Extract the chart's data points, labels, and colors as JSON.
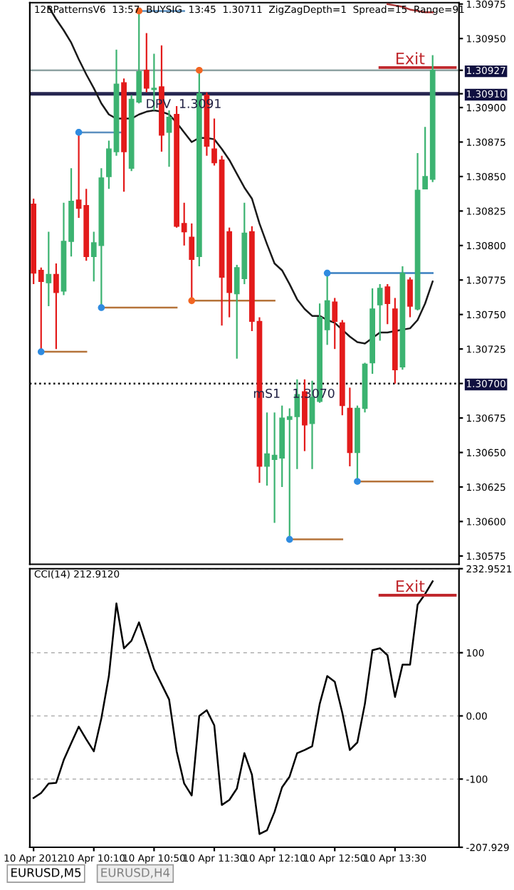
{
  "chart_data": [
    {
      "type": "candlestick",
      "title": "12BPatternsV6  13:57  BUYSIG  13:45  1.30711  ZigZagDepth=1  Spread=15  Range=91",
      "categories": [
        null,
        null,
        null,
        null,
        null,
        null,
        null,
        null,
        null,
        null,
        null,
        null,
        null,
        null,
        null,
        null,
        null,
        null,
        null,
        null,
        null,
        null,
        null,
        null,
        null,
        null,
        null,
        null,
        null,
        null,
        null,
        null,
        null,
        null,
        null,
        null,
        null,
        null,
        null,
        null,
        null,
        null,
        null,
        null,
        null,
        null,
        null,
        null,
        null,
        null,
        null,
        null,
        null,
        null,
        null,
        null,
        null
      ],
      "ohlc": [
        [
          1.3083,
          1.30834,
          1.30772,
          1.3078
        ],
        [
          1.30782,
          1.30784,
          1.30723,
          1.30774
        ],
        [
          1.30773,
          1.3081,
          1.30756,
          1.30779
        ],
        [
          1.30779,
          1.30787,
          1.30725,
          1.30766
        ],
        [
          1.30767,
          1.30831,
          1.30764,
          1.30803
        ],
        [
          1.30803,
          1.30856,
          1.30792,
          1.30832
        ],
        [
          1.30833,
          1.30882,
          1.3082,
          1.30827
        ],
        [
          1.30829,
          1.30841,
          1.30789,
          1.30792
        ],
        [
          1.30792,
          1.3081,
          1.30774,
          1.30802
        ],
        [
          1.308,
          1.30856,
          1.30755,
          1.30849
        ],
        [
          1.3085,
          1.30876,
          1.30841,
          1.3087
        ],
        [
          1.30868,
          1.30942,
          1.30865,
          1.30917
        ],
        [
          1.30918,
          1.30921,
          1.30839,
          1.30868
        ],
        [
          1.30856,
          1.30909,
          1.30854,
          1.30906
        ],
        [
          1.30904,
          1.3097,
          1.30903,
          1.30926
        ],
        [
          1.30927,
          1.30954,
          1.30911,
          1.30914
        ],
        [
          1.30913,
          1.30939,
          1.30898,
          1.30914
        ],
        [
          1.30915,
          1.30945,
          1.30868,
          1.3088
        ],
        [
          1.30882,
          1.30898,
          1.30857,
          1.30893
        ],
        [
          1.30895,
          1.30901,
          1.30813,
          1.30814
        ],
        [
          1.30816,
          1.30831,
          1.308,
          1.3081
        ],
        [
          1.30806,
          1.30816,
          1.3076,
          1.3079
        ],
        [
          1.30792,
          1.30927,
          1.30785,
          1.3091
        ],
        [
          1.30909,
          1.30911,
          1.30865,
          1.30872
        ],
        [
          1.3087,
          1.30892,
          1.30858,
          1.3086
        ],
        [
          1.30862,
          1.30865,
          1.30742,
          1.30777
        ],
        [
          1.3081,
          1.30813,
          1.30748,
          1.30766
        ],
        [
          1.30765,
          1.30786,
          1.30718,
          1.30784
        ],
        [
          1.30776,
          1.30831,
          1.30772,
          1.30809
        ],
        [
          1.3081,
          1.30814,
          1.30738,
          1.30745
        ],
        [
          1.30745,
          1.30748,
          1.30628,
          1.3064
        ],
        [
          1.3064,
          1.30679,
          1.30626,
          1.30649
        ],
        [
          1.30645,
          1.30679,
          1.30599,
          1.30648
        ],
        [
          1.30646,
          1.30684,
          1.30625,
          1.30675
        ],
        [
          1.30674,
          1.30682,
          1.30587,
          1.30676
        ],
        [
          1.30676,
          1.30703,
          1.30638,
          1.30692
        ],
        [
          1.30694,
          1.30703,
          1.30651,
          1.3067
        ],
        [
          1.30671,
          1.30702,
          1.30638,
          1.3069
        ],
        [
          1.30687,
          1.30758,
          1.30686,
          1.30748
        ],
        [
          1.30739,
          1.3078,
          1.30728,
          1.3076
        ],
        [
          1.30759,
          1.30762,
          1.30725,
          1.30745
        ],
        [
          1.30744,
          1.30746,
          1.30677,
          1.30684
        ],
        [
          1.30682,
          1.30697,
          1.3064,
          1.3065
        ],
        [
          1.3065,
          1.30684,
          1.30629,
          1.30682
        ],
        [
          1.30682,
          1.30715,
          1.30679,
          1.30714
        ],
        [
          1.30715,
          1.30769,
          1.30707,
          1.30754
        ],
        [
          1.30757,
          1.30772,
          1.30731,
          1.30769
        ],
        [
          1.3077,
          1.30772,
          1.30743,
          1.30758
        ],
        [
          1.30754,
          1.30762,
          1.307,
          1.3071
        ],
        [
          1.30712,
          1.30785,
          1.3071,
          1.3078
        ],
        [
          1.30775,
          1.30777,
          1.30748,
          1.30756
        ],
        [
          1.30754,
          1.30867,
          1.30753,
          1.3084
        ],
        [
          1.30841,
          1.30886,
          1.30841,
          1.3085
        ],
        [
          1.30848,
          1.30938,
          1.30846,
          1.30927
        ],
        null,
        null,
        null
      ],
      "colors": [
        "#e31b1b",
        "#e31b1b",
        "#3cb371",
        "#e31b1b",
        "#3cb371",
        "#3cb371",
        "#e31b1b",
        "#e31b1b",
        "#3cb371",
        "#3cb371",
        "#3cb371",
        "#3cb371",
        "#e31b1b",
        "#3cb371",
        "#3cb371",
        "#e31b1b",
        "#3cb371",
        "#e31b1b",
        "#3cb371",
        "#e31b1b",
        "#e31b1b",
        "#e31b1b",
        "#3cb371",
        "#e31b1b",
        "#e31b1b",
        "#e31b1b",
        "#e31b1b",
        "#3cb371",
        "#3cb371",
        "#e31b1b",
        "#e31b1b",
        "#3cb371",
        "#3cb371",
        "#3cb371",
        "#3cb371",
        "#3cb371",
        "#e31b1b",
        "#3cb371",
        "#3cb371",
        "#3cb371",
        "#e31b1b",
        "#e31b1b",
        "#e31b1b",
        "#3cb371",
        "#3cb371",
        "#3cb371",
        "#3cb371",
        "#e31b1b",
        "#e31b1b",
        "#3cb371",
        "#e31b1b",
        "#3cb371",
        "#3cb371",
        "#3cb371",
        null,
        null,
        null
      ],
      "series": [
        {
          "type": "line",
          "color": "#1a1a1a",
          "values": [
            null,
            null,
            1.30973,
            1.30964,
            1.30956,
            1.30947,
            1.30935,
            1.30924,
            1.30914,
            1.30903,
            1.30895,
            1.30892,
            1.30892,
            1.30892,
            1.30895,
            1.30897,
            1.30898,
            1.30897,
            1.30895,
            1.30889,
            1.30882,
            1.30875,
            1.30878,
            1.30878,
            1.30877,
            1.3087,
            1.30862,
            1.30852,
            1.30842,
            1.30834,
            1.30816,
            1.30801,
            1.30787,
            1.30782,
            1.30772,
            1.30761,
            1.30754,
            1.30749,
            1.30749,
            1.30746,
            1.30744,
            1.30739,
            1.30734,
            1.3073,
            1.30729,
            1.30733,
            1.30737,
            1.30737,
            1.30738,
            1.30739,
            1.3074,
            1.30746,
            1.30758,
            1.30774,
            null,
            null,
            null
          ]
        },
        {
          "type": "line",
          "color": "#a83232",
          "values": [
            null,
            null,
            null,
            null,
            null,
            null,
            null,
            null,
            null,
            null,
            null,
            null,
            null,
            null,
            null,
            null,
            null,
            null,
            null,
            null,
            null,
            null,
            null,
            null,
            null,
            null,
            null,
            null,
            null,
            null,
            null,
            null,
            null,
            null,
            null,
            null,
            null,
            null,
            null,
            null,
            null,
            null,
            null,
            null,
            null,
            null,
            null,
            1.30975,
            1.30974,
            1.30973,
            1.30971,
            1.3097,
            1.30969,
            1.30969,
            null,
            null,
            null
          ]
        },
        {
          "type": "line",
          "color": "#5b8fbf",
          "values": [
            null,
            null,
            null,
            null,
            null,
            null,
            null,
            null,
            null,
            null,
            null,
            null,
            null,
            null,
            1.3097,
            1.3097,
            1.3097,
            1.3097,
            1.3097,
            1.3097,
            1.3097,
            null,
            null,
            null,
            null,
            null,
            null,
            null,
            null,
            null,
            null,
            null,
            null,
            null,
            null,
            null,
            null,
            null,
            null,
            null,
            null,
            null,
            null,
            null,
            null,
            null,
            null,
            null,
            null,
            null,
            null,
            null,
            null,
            null,
            null,
            null,
            null
          ]
        },
        {
          "type": "line",
          "color": "#5b8fbf",
          "values": [
            null,
            null,
            null,
            null,
            null,
            null,
            1.30882,
            1.30882,
            1.30882,
            1.30882,
            1.30882,
            1.30882,
            1.30882,
            null,
            null,
            null,
            null,
            null,
            null,
            null,
            null,
            null,
            null,
            null,
            null,
            null,
            null,
            null,
            null,
            null,
            null,
            null,
            null,
            null,
            null,
            null,
            null,
            null,
            null,
            null,
            null,
            null,
            null,
            null,
            null,
            null,
            null,
            null,
            null,
            null,
            null,
            null,
            null,
            null,
            null,
            null,
            null
          ]
        },
        {
          "type": "line",
          "color": "#b5733a",
          "values": [
            null,
            1.30723,
            1.30723,
            1.30723,
            1.30723,
            1.30723,
            1.30723,
            1.30723,
            null,
            null,
            null,
            null,
            null,
            null,
            null,
            null,
            null,
            null,
            null,
            null,
            null,
            null,
            null,
            null,
            null,
            null,
            null,
            null,
            null,
            null,
            null,
            null,
            null,
            null,
            null,
            null,
            null,
            null,
            null,
            null,
            null,
            null,
            null,
            null,
            null,
            null,
            null,
            null,
            null,
            null,
            null,
            null,
            null,
            null,
            null,
            null,
            null
          ]
        },
        {
          "type": "line",
          "color": "#b5733a",
          "values": [
            null,
            null,
            null,
            null,
            null,
            null,
            null,
            null,
            null,
            1.30755,
            1.30755,
            1.30755,
            1.30755,
            1.30755,
            1.30755,
            1.30755,
            1.30755,
            1.30755,
            1.30755,
            1.30755,
            null,
            null,
            null,
            null,
            null,
            null,
            null,
            null,
            null,
            null,
            null,
            null,
            null,
            null,
            null,
            null,
            null,
            null,
            null,
            null,
            null,
            null,
            null,
            null,
            null,
            null,
            null,
            null,
            null,
            null,
            null,
            null,
            null,
            null,
            null,
            null,
            null
          ]
        },
        {
          "type": "line",
          "color": "#b5733a",
          "values": [
            null,
            null,
            null,
            null,
            null,
            null,
            null,
            null,
            null,
            null,
            null,
            null,
            null,
            null,
            null,
            null,
            null,
            null,
            null,
            null,
            null,
            1.3076,
            1.3076,
            1.3076,
            1.3076,
            1.3076,
            1.3076,
            1.3076,
            1.3076,
            1.3076,
            1.3076,
            1.3076,
            1.3076,
            null,
            null,
            null,
            null,
            null,
            null,
            null,
            null,
            null,
            null,
            null,
            null,
            null,
            null,
            null,
            null,
            null,
            null,
            null,
            null,
            null,
            null,
            null,
            null
          ]
        },
        {
          "type": "line",
          "color": "#b5733a",
          "values": [
            null,
            null,
            null,
            null,
            null,
            null,
            null,
            null,
            null,
            null,
            null,
            null,
            null,
            null,
            null,
            null,
            null,
            null,
            null,
            null,
            null,
            null,
            null,
            null,
            null,
            null,
            null,
            null,
            null,
            null,
            null,
            null,
            null,
            null,
            1.30587,
            1.30587,
            1.30587,
            1.30587,
            1.30587,
            1.30587,
            1.30587,
            1.30587,
            null,
            null,
            null,
            null,
            null,
            null,
            null,
            null,
            null,
            null,
            null,
            null,
            null,
            null,
            null
          ]
        },
        {
          "type": "line",
          "color": "#b5733a",
          "values": [
            null,
            null,
            null,
            null,
            null,
            null,
            null,
            null,
            null,
            null,
            null,
            null,
            null,
            null,
            null,
            null,
            null,
            null,
            null,
            null,
            null,
            null,
            null,
            null,
            null,
            null,
            null,
            null,
            null,
            null,
            null,
            null,
            null,
            null,
            null,
            null,
            null,
            null,
            null,
            null,
            null,
            null,
            null,
            1.30629,
            1.30629,
            1.30629,
            1.30629,
            1.30629,
            1.30629,
            1.30629,
            1.30629,
            1.30629,
            1.30629,
            1.30629,
            null,
            null,
            null
          ]
        },
        {
          "type": "line",
          "color": "#3a7fc0",
          "values": [
            null,
            null,
            null,
            null,
            null,
            null,
            null,
            null,
            null,
            null,
            null,
            null,
            null,
            null,
            null,
            null,
            null,
            null,
            null,
            null,
            null,
            null,
            null,
            null,
            null,
            null,
            null,
            null,
            null,
            null,
            null,
            null,
            null,
            null,
            null,
            null,
            null,
            null,
            null,
            1.3078,
            1.3078,
            1.3078,
            1.3078,
            1.3078,
            1.3078,
            1.3078,
            1.3078,
            1.3078,
            1.3078,
            1.3078,
            1.3078,
            1.3078,
            1.3078,
            1.3078,
            null,
            null,
            null
          ]
        },
        {
          "type": "line",
          "name": "Exit",
          "color": "#c0282d",
          "values": [
            null,
            null,
            null,
            null,
            null,
            null,
            null,
            null,
            null,
            null,
            null,
            null,
            null,
            null,
            null,
            null,
            null,
            null,
            null,
            null,
            null,
            null,
            null,
            null,
            null,
            null,
            null,
            null,
            null,
            null,
            null,
            null,
            null,
            null,
            null,
            null,
            null,
            null,
            null,
            null,
            null,
            null,
            null,
            null,
            null,
            null,
            1.30929,
            1.30929,
            1.30929,
            1.30929,
            1.30929,
            1.30929,
            1.30929,
            1.30929,
            1.30929,
            1.30929,
            1.30929
          ]
        },
        {
          "type": "scatter",
          "color": "#2f8be0",
          "values": [
            null,
            1.30723,
            null,
            null,
            null,
            null,
            1.30882,
            null,
            null,
            1.30755,
            null,
            null,
            null,
            null,
            null,
            null,
            null,
            null,
            null,
            null,
            null,
            null,
            null,
            null,
            null,
            null,
            null,
            null,
            null,
            null,
            null,
            null,
            null,
            null,
            1.30587,
            null,
            null,
            null,
            null,
            1.3078,
            null,
            null,
            null,
            1.30629,
            null,
            null,
            null,
            null,
            null,
            null,
            null,
            null,
            null,
            null,
            null,
            null,
            null
          ]
        },
        {
          "type": "scatter",
          "color": "#f26522",
          "values": [
            null,
            null,
            null,
            null,
            null,
            null,
            null,
            null,
            null,
            null,
            null,
            null,
            null,
            null,
            1.3097,
            null,
            null,
            null,
            null,
            null,
            null,
            1.3076,
            1.30927,
            null,
            null,
            null,
            null,
            null,
            null,
            null,
            null,
            null,
            null,
            null,
            null,
            null,
            null,
            null,
            null,
            null,
            null,
            null,
            null,
            null,
            null,
            null,
            null,
            null,
            null,
            null,
            null,
            null,
            null,
            null,
            null,
            null,
            null
          ]
        }
      ],
      "ref_lines": [
        {
          "axis": "y",
          "value": 1.30927,
          "color": "#8fa3a3"
        },
        {
          "axis": "y",
          "value": 1.3091,
          "label": "DPV  1.3091",
          "color": "#262650"
        },
        {
          "axis": "y",
          "value": 1.307,
          "label": "mS1   1.3070",
          "color": "#000000",
          "line_style": "dotted"
        }
      ],
      "ylim": [
        1.30569,
        1.30976
      ],
      "yticks": [
        1.30975,
        {
          "value": 1.3095,
          "label": "1.30950"
        },
        {
          "value": 1.30927,
          "label": "1.30927"
        },
        {
          "value": 1.3091,
          "label": "1.30910"
        },
        {
          "value": 1.309,
          "label": "1.30900"
        },
        1.30875,
        {
          "value": 1.3085,
          "label": "1.30850"
        },
        1.30825,
        {
          "value": 1.308,
          "label": "1.30800"
        },
        1.30775,
        {
          "value": 1.3075,
          "label": "1.30750"
        },
        1.30725,
        {
          "value": 1.307,
          "label": "1.30700"
        },
        1.30675,
        {
          "value": 1.3065,
          "label": "1.30650"
        },
        1.30625,
        {
          "value": 1.306,
          "label": "1.30600"
        },
        1.30575
      ]
    },
    {
      "type": "line",
      "title": "CCI(14) 212.9120",
      "categories": [
        "10 Apr 2012",
        null,
        null,
        null,
        null,
        null,
        null,
        null,
        "10 Apr 10:10",
        null,
        null,
        null,
        null,
        null,
        null,
        null,
        "10 Apr 10:50",
        null,
        null,
        null,
        null,
        null,
        null,
        null,
        "10 Apr 11:30",
        null,
        null,
        null,
        null,
        null,
        null,
        null,
        "10 Apr 12:10",
        null,
        null,
        null,
        null,
        null,
        null,
        null,
        "10 Apr 12:50",
        null,
        null,
        null,
        null,
        null,
        null,
        null,
        "10 Apr 13:30",
        null,
        null,
        null,
        null,
        null,
        null,
        null,
        null
      ],
      "series": [
        {
          "color": "#000000",
          "values": [
            -130,
            -122,
            -107,
            -106,
            -70,
            -43,
            -17,
            -37,
            -56,
            -4,
            63,
            178,
            107,
            119,
            148,
            111,
            74,
            50,
            26,
            -56,
            -107,
            -126,
            0,
            9,
            -15,
            -141,
            -133,
            -115,
            -59,
            -93,
            -187,
            -181,
            -152,
            -113,
            -96,
            -59,
            -54,
            -48,
            19,
            63,
            54,
            5,
            -54,
            -42,
            19,
            104,
            107,
            96,
            30,
            81,
            81,
            176,
            193,
            212.912,
            null,
            null,
            null
          ]
        },
        {
          "name": "Exit",
          "color": "#c0282d",
          "values": [
            null,
            null,
            null,
            null,
            null,
            null,
            null,
            null,
            null,
            null,
            null,
            null,
            null,
            null,
            null,
            null,
            null,
            null,
            null,
            null,
            null,
            null,
            null,
            null,
            null,
            null,
            null,
            null,
            null,
            null,
            null,
            null,
            null,
            null,
            null,
            null,
            null,
            null,
            null,
            null,
            null,
            null,
            null,
            null,
            null,
            null,
            191,
            191,
            191,
            191,
            191,
            191,
            191,
            191,
            191,
            191,
            191
          ]
        }
      ],
      "ylim": [
        -207.929,
        232.9521
      ],
      "yticks": [
        {
          "value": 232.9521,
          "label": "232.9521"
        },
        100,
        {
          "value": 0,
          "label": "0.00"
        },
        -100,
        {
          "value": -207.929,
          "label": "-207.929"
        }
      ],
      "grid": "y",
      "annotations": [
        "EURUSD,M5",
        "EURUSD,H4"
      ]
    }
  ]
}
